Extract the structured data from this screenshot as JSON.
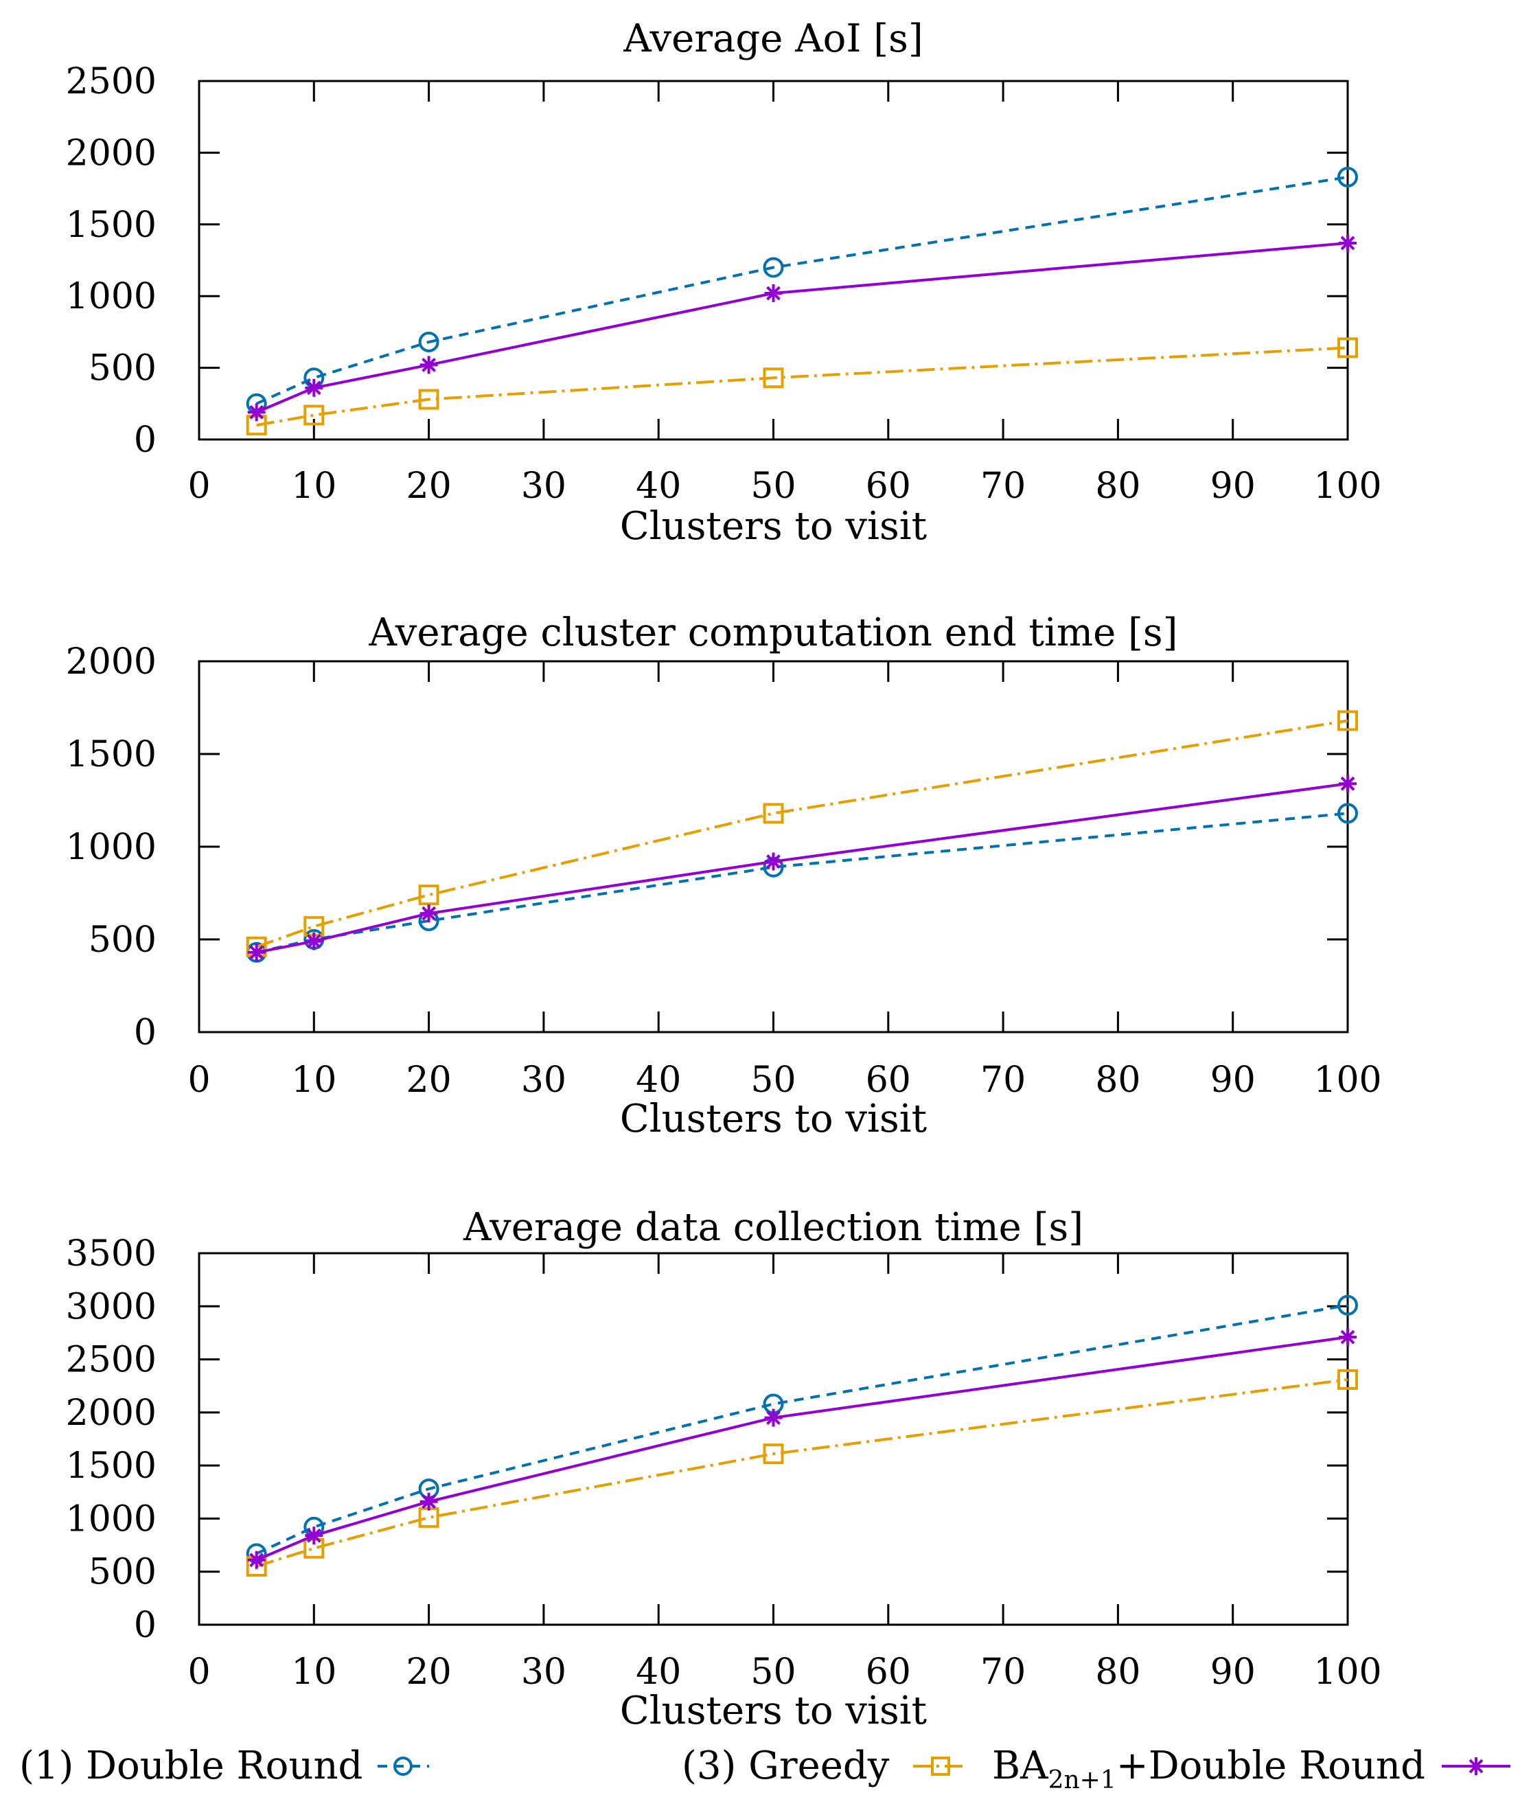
{
  "legend": {
    "double_round": "(1) Double Round",
    "greedy": "(3) Greedy",
    "ba_prefix": "BA",
    "ba_subscript": "2n+1",
    "ba_suffix": "+Double Round"
  },
  "colors": {
    "double_round": "#0072b2",
    "greedy": "#e69f00",
    "ba_double_round": "#9400d3"
  },
  "chart_data": [
    {
      "type": "line",
      "title": "Average AoI [s]",
      "xlabel": "Clusters to visit",
      "ylabel": "",
      "xlim": [
        0,
        100
      ],
      "ylim": [
        0,
        2500
      ],
      "xticks": [
        0,
        10,
        20,
        30,
        40,
        50,
        60,
        70,
        80,
        90,
        100
      ],
      "yticks": [
        0,
        500,
        1000,
        1500,
        2000,
        2500
      ],
      "grid": false,
      "x": [
        5,
        10,
        20,
        50,
        100
      ],
      "series": [
        {
          "name": "(1) Double Round",
          "key": "double_round",
          "marker": "circle",
          "dash": "dashed",
          "values": [
            250,
            430,
            680,
            1200,
            1830
          ]
        },
        {
          "name": "(3) Greedy",
          "key": "greedy",
          "marker": "square",
          "dash": "dashdot",
          "values": [
            100,
            170,
            280,
            430,
            640
          ]
        },
        {
          "name": "BA2n+1+Double Round",
          "key": "ba_double_round",
          "marker": "star",
          "dash": "solid",
          "values": [
            190,
            360,
            520,
            1020,
            1370
          ]
        }
      ]
    },
    {
      "type": "line",
      "title": "Average cluster computation end time [s]",
      "xlabel": "Clusters to visit",
      "ylabel": "",
      "xlim": [
        0,
        100
      ],
      "ylim": [
        0,
        2000
      ],
      "xticks": [
        0,
        10,
        20,
        30,
        40,
        50,
        60,
        70,
        80,
        90,
        100
      ],
      "yticks": [
        0,
        500,
        1000,
        1500,
        2000
      ],
      "grid": false,
      "x": [
        5,
        10,
        20,
        50,
        100
      ],
      "series": [
        {
          "name": "(1) Double Round",
          "key": "double_round",
          "marker": "circle",
          "dash": "dashed",
          "values": [
            430,
            500,
            600,
            890,
            1180
          ]
        },
        {
          "name": "(3) Greedy",
          "key": "greedy",
          "marker": "square",
          "dash": "dashdot",
          "values": [
            460,
            570,
            740,
            1180,
            1680
          ]
        },
        {
          "name": "BA2n+1+Double Round",
          "key": "ba_double_round",
          "marker": "star",
          "dash": "solid",
          "values": [
            430,
            490,
            640,
            920,
            1340
          ]
        }
      ]
    },
    {
      "type": "line",
      "title": "Average data collection time [s]",
      "xlabel": "Clusters to visit",
      "ylabel": "",
      "xlim": [
        0,
        100
      ],
      "ylim": [
        0,
        3500
      ],
      "xticks": [
        0,
        10,
        20,
        30,
        40,
        50,
        60,
        70,
        80,
        90,
        100
      ],
      "yticks": [
        0,
        500,
        1000,
        1500,
        2000,
        2500,
        3000,
        3500
      ],
      "grid": false,
      "x": [
        5,
        10,
        20,
        50,
        100
      ],
      "series": [
        {
          "name": "(1) Double Round",
          "key": "double_round",
          "marker": "circle",
          "dash": "dashed",
          "values": [
            670,
            920,
            1280,
            2080,
            3010
          ]
        },
        {
          "name": "(3) Greedy",
          "key": "greedy",
          "marker": "square",
          "dash": "dashdot",
          "values": [
            550,
            720,
            1010,
            1610,
            2310
          ]
        },
        {
          "name": "BA2n+1+Double Round",
          "key": "ba_double_round",
          "marker": "star",
          "dash": "solid",
          "values": [
            610,
            840,
            1160,
            1950,
            2710
          ]
        }
      ]
    }
  ]
}
